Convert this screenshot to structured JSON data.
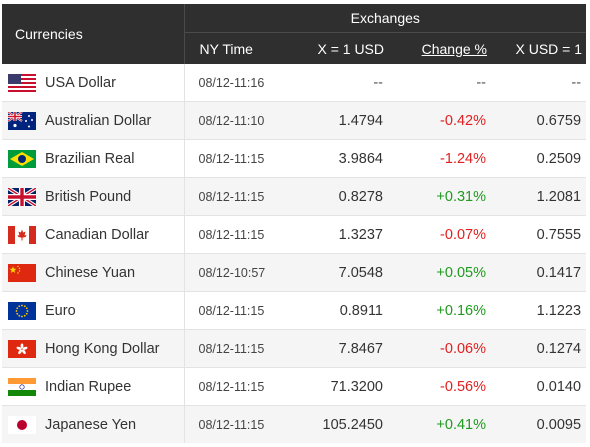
{
  "header": {
    "currencies": "Currencies",
    "exchanges": "Exchanges",
    "ny_time": "NY Time",
    "x_eq_usd": "X = 1 USD",
    "change_pct": "Change %",
    "x_usd_eq": "X USD = 1"
  },
  "rows": [
    {
      "name": "USA Dollar",
      "flag": "us-flag-icon",
      "time": "08/12-11:16",
      "rate": "--",
      "change": "--",
      "inverse": "--"
    },
    {
      "name": "Australian Dollar",
      "flag": "au-flag-icon",
      "time": "08/12-11:10",
      "rate": "1.4794",
      "change": "-0.42%",
      "inverse": "0.6759"
    },
    {
      "name": "Brazilian Real",
      "flag": "br-flag-icon",
      "time": "08/12-11:15",
      "rate": "3.9864",
      "change": "-1.24%",
      "inverse": "0.2509"
    },
    {
      "name": "British Pound",
      "flag": "gb-flag-icon",
      "time": "08/12-11:15",
      "rate": "0.8278",
      "change": "+0.31%",
      "inverse": "1.2081"
    },
    {
      "name": "Canadian Dollar",
      "flag": "ca-flag-icon",
      "time": "08/12-11:15",
      "rate": "1.3237",
      "change": "-0.07%",
      "inverse": "0.7555"
    },
    {
      "name": "Chinese Yuan",
      "flag": "cn-flag-icon",
      "time": "08/12-10:57",
      "rate": "7.0548",
      "change": "+0.05%",
      "inverse": "0.1417"
    },
    {
      "name": "Euro",
      "flag": "eu-flag-icon",
      "time": "08/12-11:15",
      "rate": "0.8911",
      "change": "+0.16%",
      "inverse": "1.1223"
    },
    {
      "name": "Hong Kong Dollar",
      "flag": "hk-flag-icon",
      "time": "08/12-11:15",
      "rate": "7.8467",
      "change": "-0.06%",
      "inverse": "0.1274"
    },
    {
      "name": "Indian Rupee",
      "flag": "in-flag-icon",
      "time": "08/12-11:15",
      "rate": "71.3200",
      "change": "-0.56%",
      "inverse": "0.0140"
    },
    {
      "name": "Japanese Yen",
      "flag": "jp-flag-icon",
      "time": "08/12-11:15",
      "rate": "105.2450",
      "change": "+0.41%",
      "inverse": "0.0095"
    }
  ],
  "colors": {
    "header_bg": "#2f2f2f",
    "negative": "#e02020",
    "positive": "#1e9a1e",
    "row_alt": "#f5f5f5"
  }
}
